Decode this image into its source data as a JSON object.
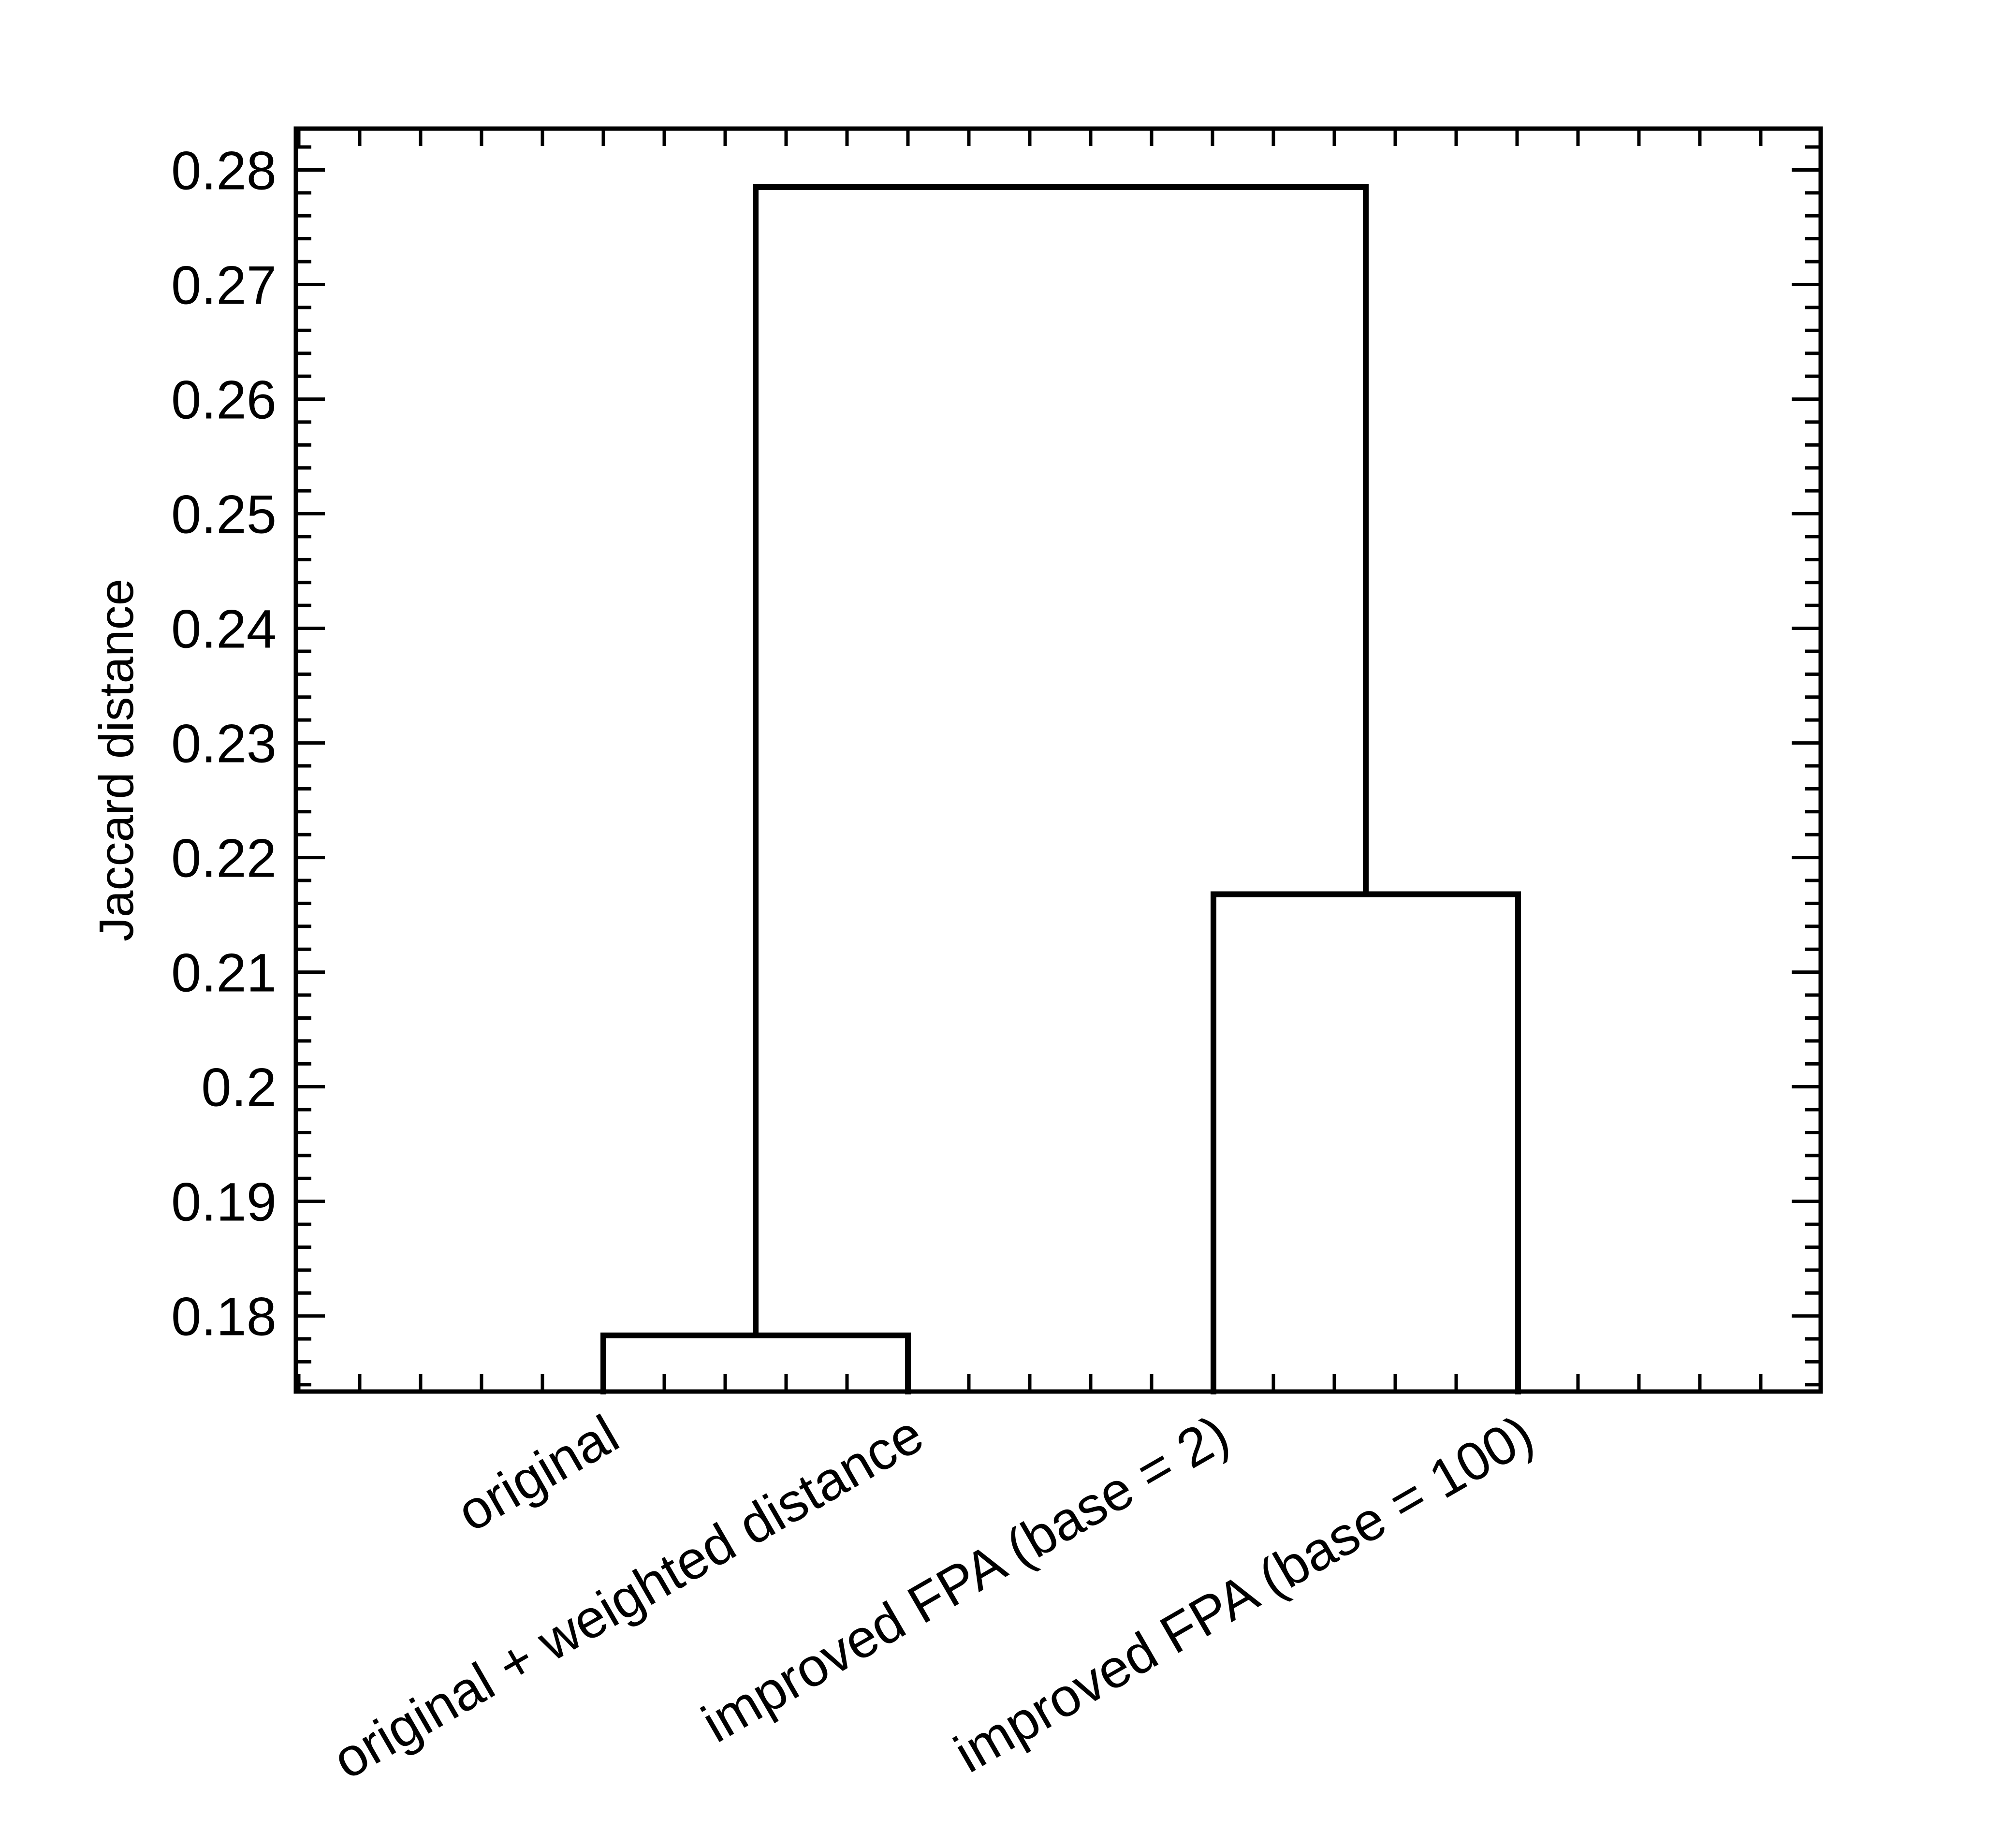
{
  "chart_data": {
    "type": "dendrogram",
    "ylabel": "Jaccard distance",
    "ylim": [
      0.1733,
      0.2835
    ],
    "yticks": [
      0.18,
      0.19,
      0.2,
      0.21,
      0.22,
      0.23,
      0.24,
      0.25,
      0.26,
      0.27,
      0.28
    ],
    "ytick_labels": [
      "0.18",
      "0.19",
      "0.2",
      "0.21",
      "0.22",
      "0.23",
      "0.24",
      "0.25",
      "0.26",
      "0.27",
      "0.28"
    ],
    "leaves": [
      "original",
      "original + weighted distance",
      "improved FPA (base = 2)",
      "improved FPA (base = 100)"
    ],
    "merges": [
      {
        "left": "original",
        "right": "original + weighted distance",
        "height": 0.1783
      },
      {
        "left": "improved FPA (base = 2)",
        "right": "improved FPA (base = 100)",
        "height": 0.2168
      },
      {
        "left": "cluster-1",
        "right": "cluster-2",
        "height": 0.2785
      }
    ],
    "grid": false,
    "legend": "none"
  }
}
